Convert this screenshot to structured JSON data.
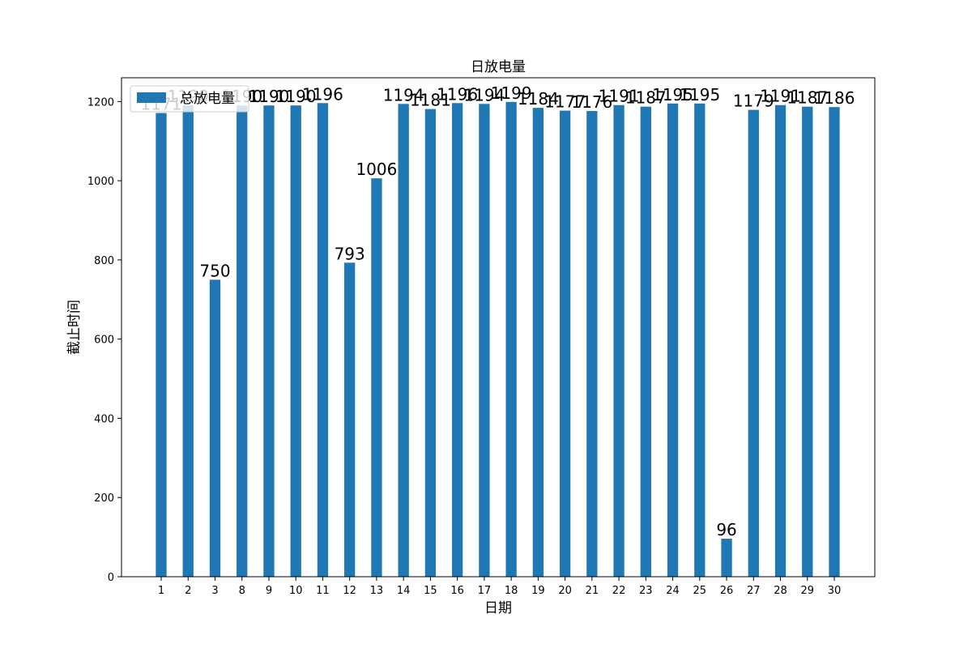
{
  "chart_data": {
    "type": "bar",
    "title": "日放电量",
    "xlabel": "日期",
    "ylabel": "截止时间",
    "categories": [
      "1",
      "2",
      "3",
      "8",
      "9",
      "10",
      "11",
      "12",
      "13",
      "14",
      "15",
      "16",
      "17",
      "18",
      "19",
      "20",
      "21",
      "22",
      "23",
      "24",
      "25",
      "26",
      "27",
      "28",
      "29",
      "30"
    ],
    "series": [
      {
        "name": "总放电量",
        "color": "#1f77b4",
        "values": [
          1171,
          1190,
          750,
          1190,
          1190,
          1190,
          1196,
          793,
          1006,
          1194,
          1181,
          1196,
          1194,
          1199,
          1184,
          1177,
          1176,
          1191,
          1187,
          1195,
          1195,
          96,
          1179,
          1191,
          1187,
          1186
        ]
      }
    ],
    "ylim": [
      0,
      1260
    ],
    "yticks": [
      0,
      200,
      400,
      600,
      800,
      1000,
      1200
    ],
    "grid": false,
    "legend": "upper-left"
  }
}
